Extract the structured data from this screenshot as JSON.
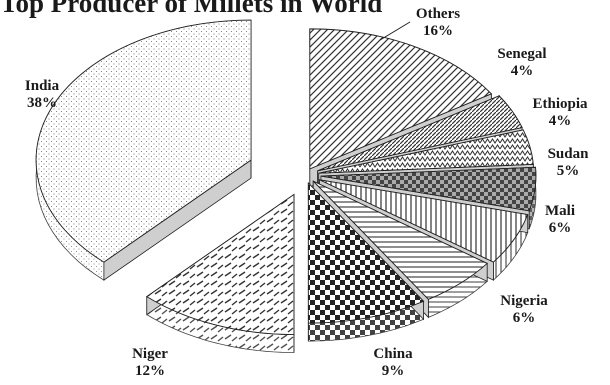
{
  "chart_data": {
    "type": "pie",
    "style": "exploded-3d",
    "title": "Top Producer of Millets in World",
    "categories": [
      "Others",
      "Senegal",
      "Ethiopia",
      "Sudan",
      "Mali",
      "Nigeria",
      "China",
      "Niger",
      "India"
    ],
    "values": [
      16,
      4,
      4,
      5,
      6,
      6,
      9,
      12,
      38
    ],
    "value_labels": [
      "16%",
      "4%",
      "4%",
      "5%",
      "6%",
      "6%",
      "9%",
      "12%",
      "38%"
    ],
    "legend": "none",
    "colors": {
      "ink": "#1a1a1a",
      "slice_base": "#ffffff",
      "pattern": "#555555",
      "side": "#cfcfcf"
    }
  }
}
